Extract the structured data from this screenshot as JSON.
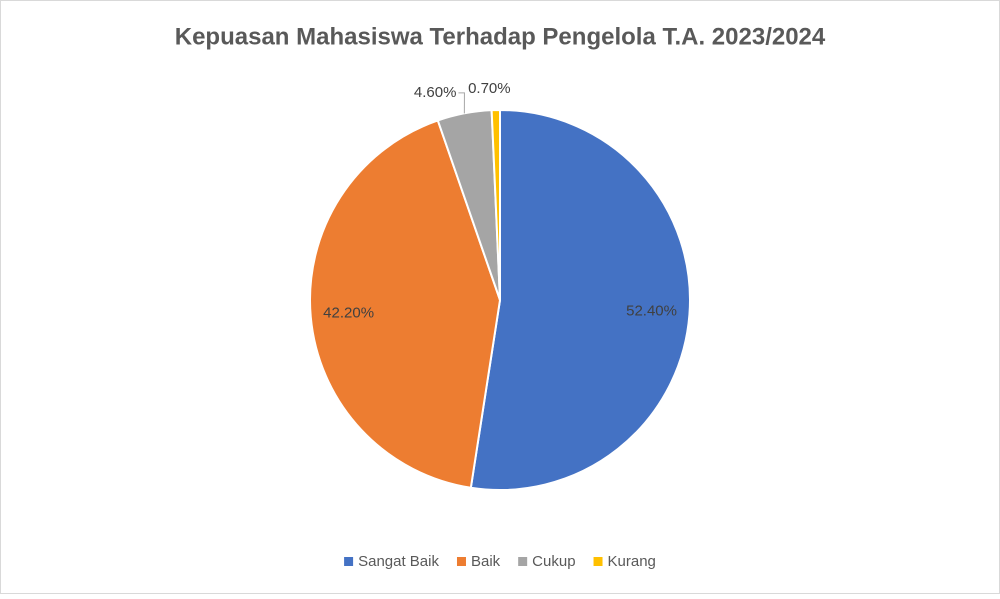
{
  "chart_data": {
    "type": "pie",
    "title": "Kepuasan Mahasiswa Terhadap Pengelola T.A. 2023/2024",
    "categories": [
      "Sangat Baik",
      "Baik",
      "Cukup",
      "Kurang"
    ],
    "values": [
      52.4,
      42.2,
      4.6,
      0.7
    ],
    "value_labels": [
      "52.40%",
      "42.20%",
      "4.60%",
      "0.70%"
    ],
    "colors": [
      "#4472c4",
      "#ed7d31",
      "#a5a5a5",
      "#ffc000"
    ],
    "legend": "bottom"
  }
}
